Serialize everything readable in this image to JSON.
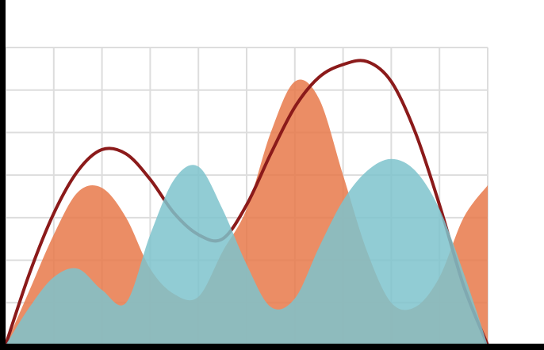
{
  "chart_data": {
    "type": "area",
    "x": [
      0,
      0.5,
      1,
      1.5,
      2,
      2.5,
      3,
      3.5,
      4,
      4.5,
      5,
      5.5,
      6,
      6.5,
      7,
      7.5,
      8,
      8.5,
      9,
      9.5,
      10
    ],
    "series": [
      {
        "kind": "area",
        "color": "#e8794a",
        "values": [
          0,
          1.3,
          2.6,
          3.6,
          3.7,
          3.0,
          1.8,
          1.2,
          1.14,
          2.2,
          3.2,
          5.0,
          6.2,
          5.8,
          4.0,
          2.2,
          1.0,
          0.9,
          1.6,
          3.0,
          3.76
        ]
      },
      {
        "kind": "line",
        "color": "#8b1a1a",
        "values": [
          0,
          1.7,
          3.1,
          4.1,
          4.6,
          4.5,
          3.9,
          3.1,
          2.6,
          2.5,
          3.3,
          4.5,
          5.6,
          6.3,
          6.6,
          6.67,
          6.2,
          5.0,
          3.3,
          1.4,
          0
        ]
      },
      {
        "kind": "area",
        "color": "#7ec3cc",
        "values": [
          0,
          0.9,
          1.6,
          1.8,
          1.3,
          1.0,
          2.6,
          3.9,
          4.2,
          3.2,
          1.9,
          0.9,
          1.1,
          2.3,
          3.4,
          4.1,
          4.38,
          4.1,
          3.2,
          1.7,
          0
        ]
      }
    ],
    "xlim": [
      0,
      10
    ],
    "xticks": [
      0,
      1,
      2,
      3,
      4,
      5,
      6,
      7,
      8,
      9,
      10
    ],
    "ylim": [
      0,
      7
    ],
    "yticks": [
      0,
      1,
      2,
      3,
      4,
      5,
      6,
      7
    ],
    "grid": true
  }
}
